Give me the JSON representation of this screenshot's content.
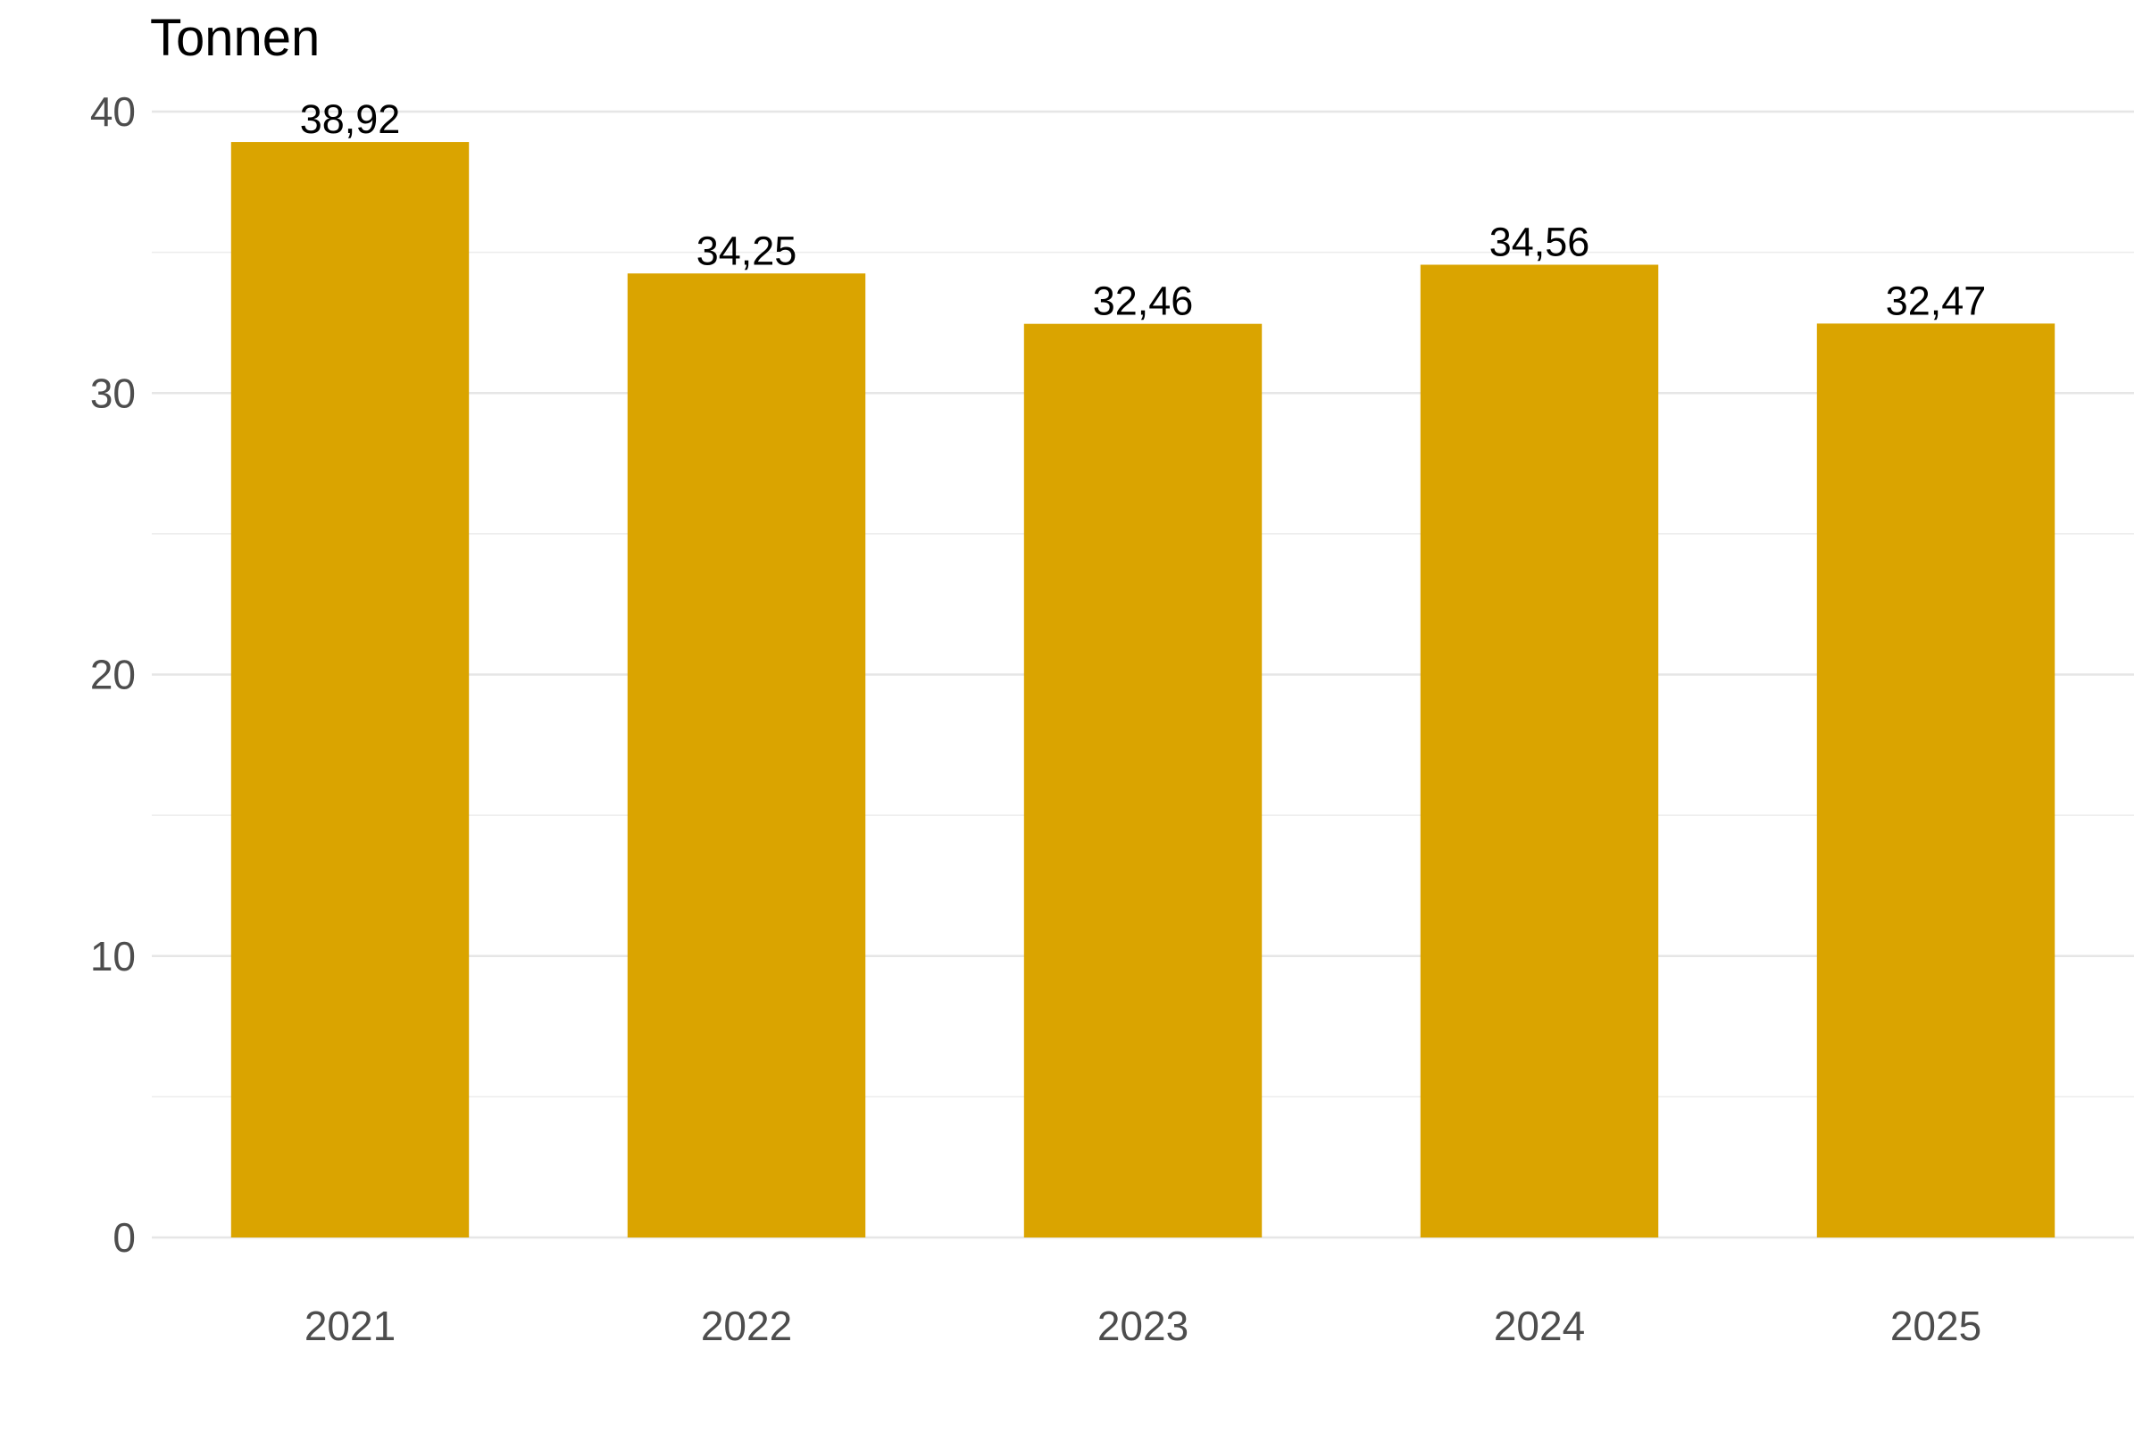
{
  "chart_data": {
    "type": "bar",
    "ylabel": "Tonnen",
    "categories": [
      "2021",
      "2022",
      "2023",
      "2024",
      "2025"
    ],
    "values": [
      38.92,
      34.25,
      32.46,
      34.56,
      32.47
    ],
    "value_labels": [
      "38,92",
      "34,25",
      "32,46",
      "34,56",
      "32,47"
    ],
    "ylim": [
      0,
      40
    ],
    "y_ticks": [
      0,
      10,
      20,
      30,
      40
    ],
    "y_tick_labels": [
      "0",
      "10",
      "20",
      "30",
      "40"
    ],
    "y_minor_ticks": [
      5,
      15,
      25,
      35
    ],
    "grid": true,
    "legend": "none",
    "bar_color": "#DAA400"
  }
}
